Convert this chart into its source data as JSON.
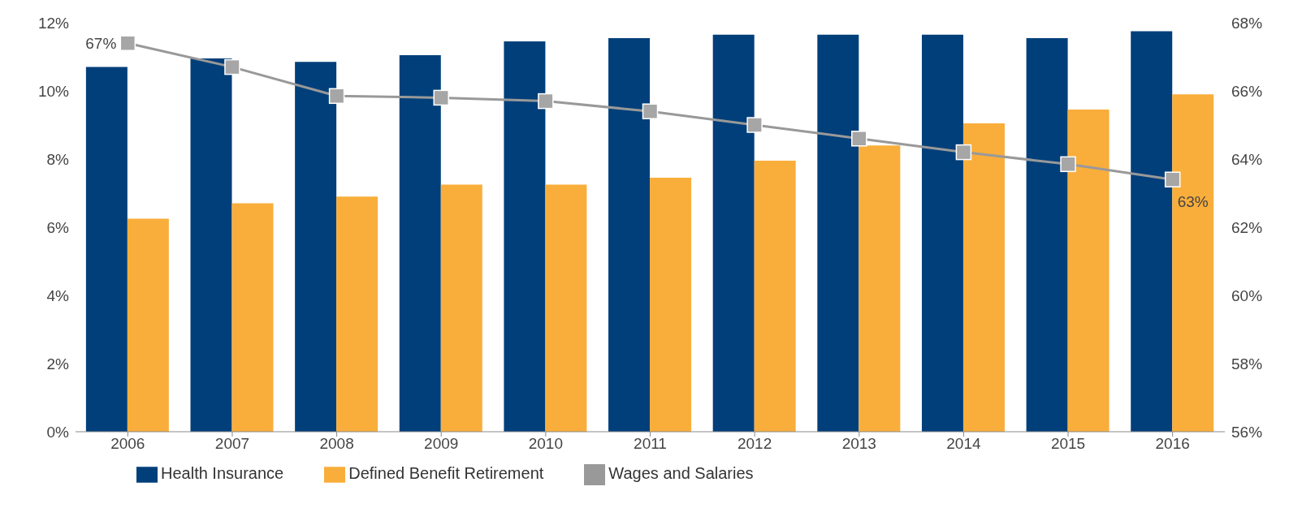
{
  "chart_data": {
    "type": "bar",
    "categories": [
      "2006",
      "2007",
      "2008",
      "2009",
      "2010",
      "2011",
      "2012",
      "2013",
      "2014",
      "2015",
      "2016"
    ],
    "series": [
      {
        "name": "Health Insurance",
        "color": "#003f7a",
        "values": [
          10.7,
          10.95,
          10.85,
          11.05,
          11.45,
          11.55,
          11.65,
          11.65,
          11.65,
          11.55,
          11.75
        ]
      },
      {
        "name": "Defined Benefit Retirement",
        "color": "#f9ae3b",
        "values": [
          6.25,
          6.7,
          6.9,
          7.25,
          7.25,
          7.45,
          7.95,
          8.4,
          9.05,
          9.45,
          9.9
        ]
      },
      {
        "name": "Wages and Salaries",
        "type": "line",
        "axis": "y2",
        "color": "#999999",
        "marker": "square",
        "values": [
          67.4,
          66.7,
          65.85,
          65.8,
          65.7,
          65.4,
          65.0,
          64.6,
          64.2,
          63.85,
          63.4
        ],
        "value_labels": [
          "67%",
          null,
          null,
          null,
          null,
          null,
          null,
          null,
          null,
          null,
          "63%"
        ]
      }
    ],
    "ylim": [
      0,
      12
    ],
    "yticks": [
      {
        "value": 0,
        "label": "0%"
      },
      {
        "value": 2,
        "label": "2%"
      },
      {
        "value": 4,
        "label": "4%"
      },
      {
        "value": 6,
        "label": "6%"
      },
      {
        "value": 8,
        "label": "8%"
      },
      {
        "value": 10,
        "label": "10%"
      },
      {
        "value": 12,
        "label": "12%"
      }
    ],
    "y2lim": [
      56,
      68
    ],
    "y2ticks": [
      {
        "value": 56,
        "label": "56%"
      },
      {
        "value": 58,
        "label": "58%"
      },
      {
        "value": 60,
        "label": "60%"
      },
      {
        "value": 62,
        "label": "62%"
      },
      {
        "value": 64,
        "label": "64%"
      },
      {
        "value": 66,
        "label": "66%"
      },
      {
        "value": 68,
        "label": "68%"
      }
    ],
    "grid": false,
    "legend": "bottom"
  }
}
